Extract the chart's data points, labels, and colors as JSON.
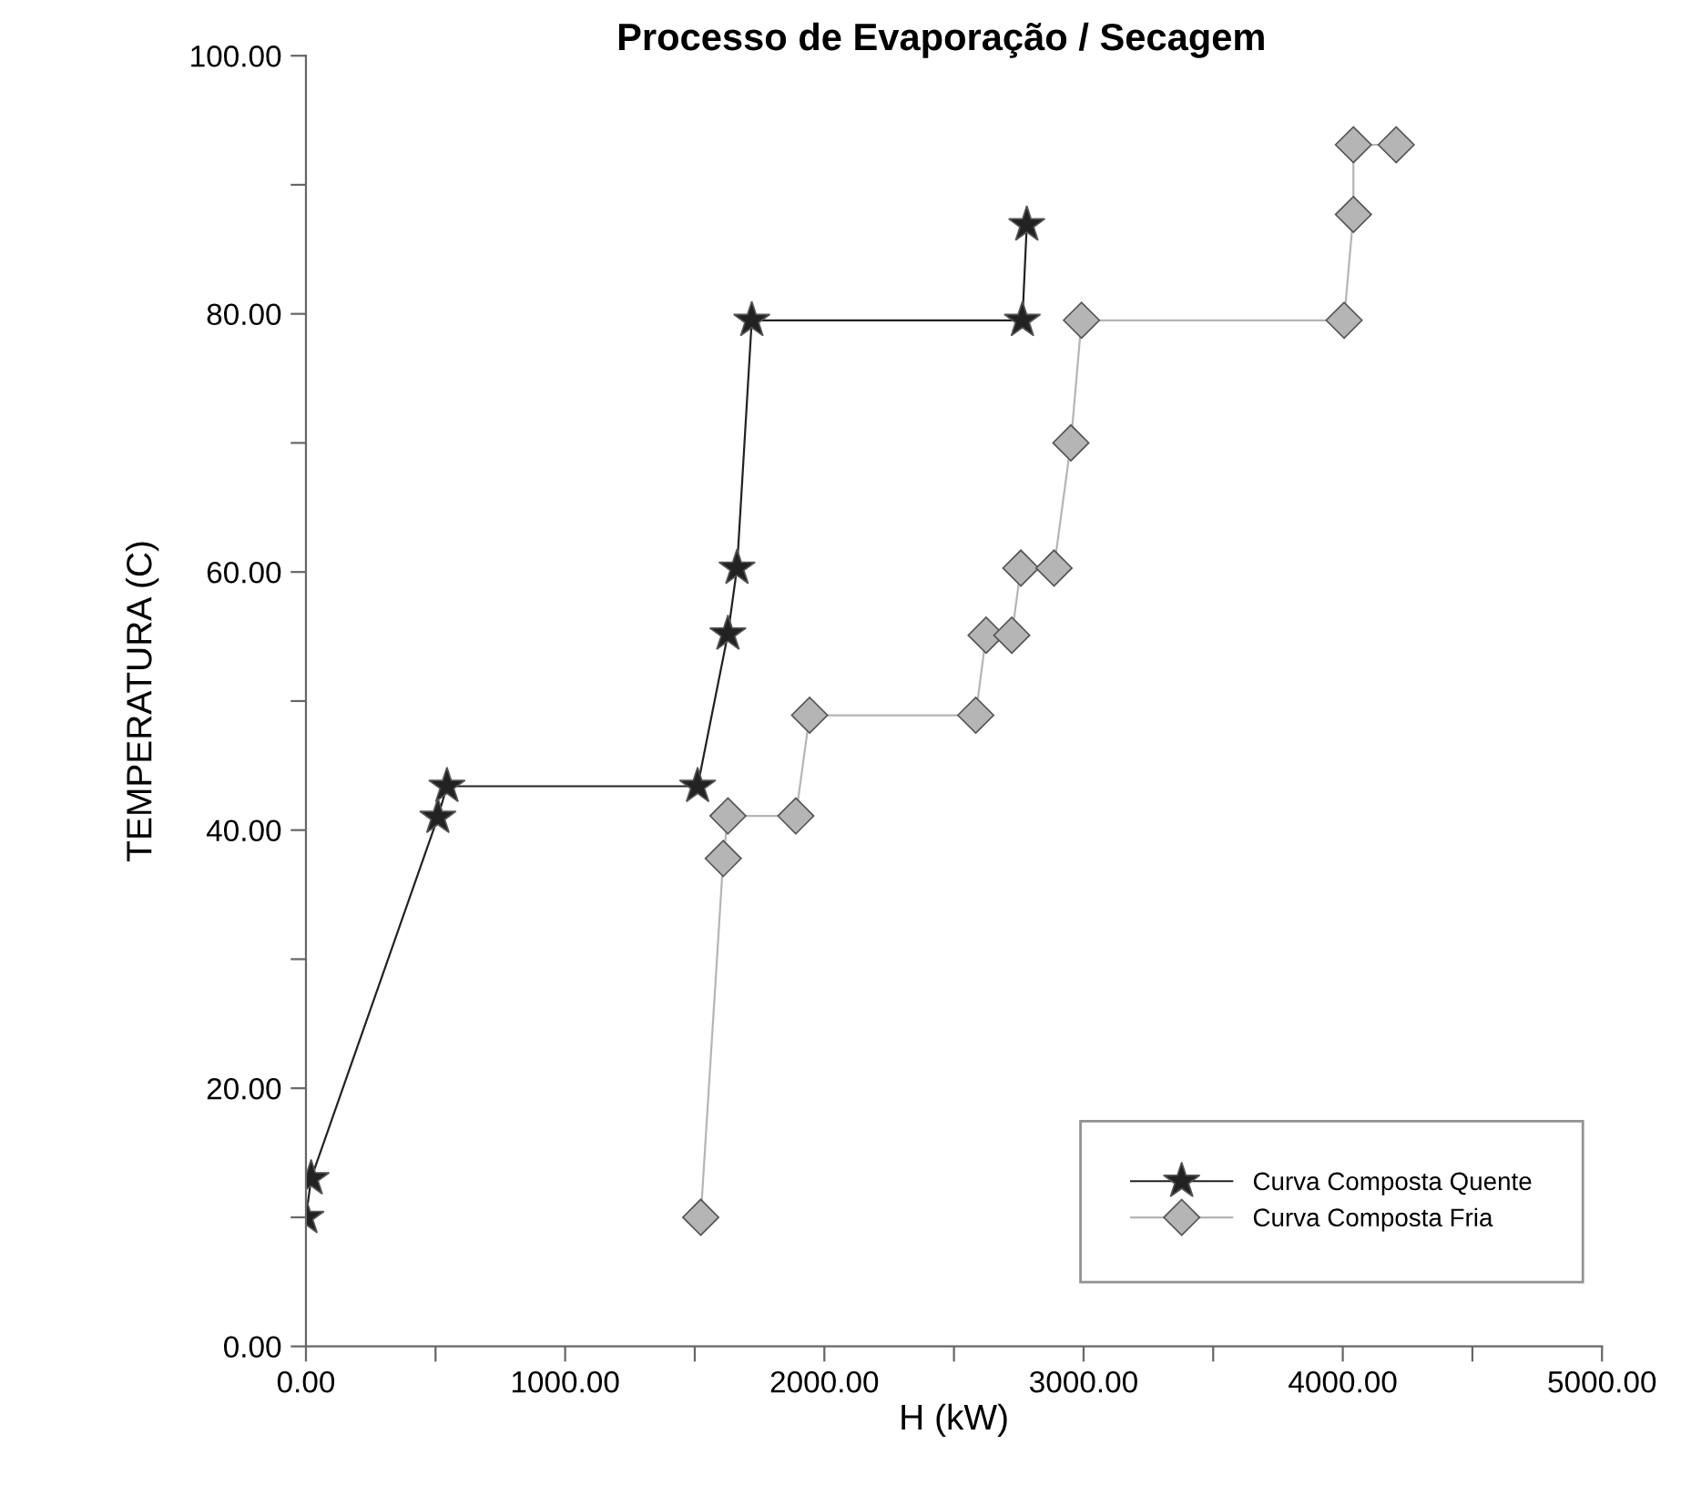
{
  "chart_data": {
    "type": "line",
    "title": "Processo de Evaporação / Secagem",
    "xlabel": "H (kW)",
    "ylabel": "TEMPERATURA (C)",
    "xlim": [
      0,
      5000
    ],
    "ylim": [
      0,
      100
    ],
    "xticks": [
      {
        "value": 0,
        "label": "0.00"
      },
      {
        "value": 500,
        "label": null
      },
      {
        "value": 1000,
        "label": "1000.00"
      },
      {
        "value": 1500,
        "label": null
      },
      {
        "value": 2000,
        "label": "2000.00"
      },
      {
        "value": 2500,
        "label": null
      },
      {
        "value": 3000,
        "label": "3000.00"
      },
      {
        "value": 3500,
        "label": null
      },
      {
        "value": 4000,
        "label": "4000.00"
      },
      {
        "value": 4500,
        "label": null
      },
      {
        "value": 5000,
        "label": "5000.00"
      }
    ],
    "yticks": [
      {
        "value": 0,
        "label": "0.00"
      },
      {
        "value": 10,
        "label": null
      },
      {
        "value": 20,
        "label": "20.00"
      },
      {
        "value": 30,
        "label": null
      },
      {
        "value": 40,
        "label": "40.00"
      },
      {
        "value": 50,
        "label": null
      },
      {
        "value": 60,
        "label": "60.00"
      },
      {
        "value": 70,
        "label": null
      },
      {
        "value": 80,
        "label": "80.00"
      },
      {
        "value": 90,
        "label": null
      },
      {
        "value": 100,
        "label": "100.00"
      }
    ],
    "grid": false,
    "legend": "bottom right",
    "line_style": "solid",
    "series": [
      {
        "name": "Curva Composta Quente",
        "color": "#222222",
        "marker": "star",
        "x": [
          0,
          20,
          509,
          544,
          1511,
          1628,
          1663,
          1720,
          2764,
          2781
        ],
        "values": [
          10,
          13,
          41,
          43.4,
          43.4,
          55.2,
          60.3,
          79.5,
          79.5,
          86.9
        ]
      },
      {
        "name": "Curva Composta Fria",
        "color": "#b5b5b5",
        "marker": "diamond",
        "x": [
          1523,
          1610,
          1628,
          1890,
          1943,
          2584,
          2624,
          2723,
          2758,
          2886,
          2951,
          2992,
          4005,
          4041,
          4041,
          4206
        ],
        "values": [
          10,
          37.8,
          41.1,
          41.1,
          48.9,
          48.9,
          55.1,
          55.1,
          60.3,
          60.3,
          70,
          79.5,
          79.5,
          87.7,
          93.1,
          93.1
        ]
      }
    ]
  }
}
